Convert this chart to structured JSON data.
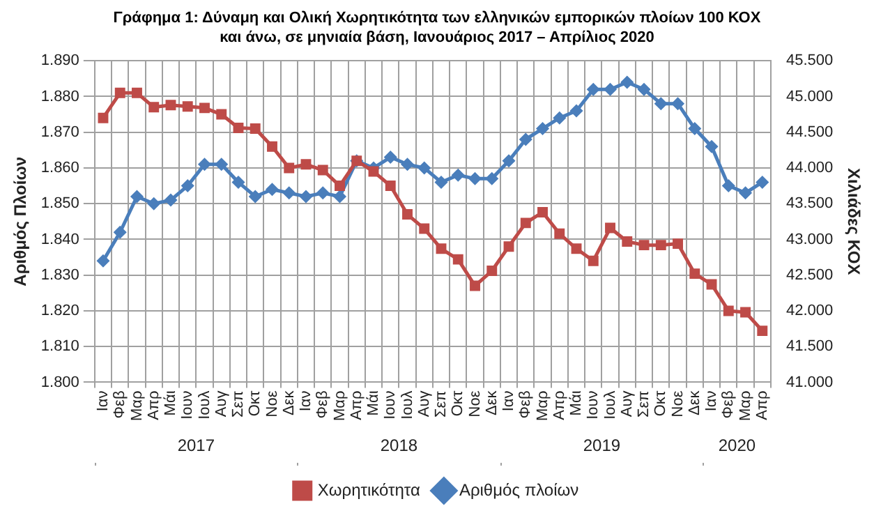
{
  "chart_data": {
    "type": "line",
    "title": "Γράφημα 1: Δύναμη και Ολική Χωρητικότητα των ελληνικών εμπορικών πλοίων 100 ΚΟΧ και άνω, σε μηνιαία βάση, Ιανουάριος 2017 – Απρίλιος 2020",
    "ylabel": "Αριθμός Πλοίων",
    "y2label": "Χιλιάδες ΚΟΧ",
    "categories": [
      "Ιαν",
      "Φεβ",
      "Μαρ",
      "Απρ",
      "Μάι",
      "Ιουν",
      "Ιουλ",
      "Αυγ",
      "Σεπ",
      "Οκτ",
      "Νοε",
      "Δεκ",
      "Ιαν",
      "Φεβ",
      "Μαρ",
      "Απρ",
      "Μάι",
      "Ιουν",
      "Ιουλ",
      "Αυγ",
      "Σεπ",
      "Οκτ",
      "Νοε",
      "Δεκ",
      "Ιαν",
      "Φεβ",
      "Μαρ",
      "Απρ",
      "Μάι",
      "Ιουν",
      "Ιουλ",
      "Αυγ",
      "Σεπ",
      "Οκτ",
      "Νοε",
      "Δεκ",
      "Ιαν",
      "Φεβ",
      "Μαρ",
      "Απρ"
    ],
    "annotations": [
      "2017",
      "2018",
      "2019",
      "2020"
    ],
    "series": [
      {
        "name": "Αριθμός πλοίων",
        "color": "#4a7ebb",
        "marker": "diamond",
        "values": [
          1834,
          1842,
          1852,
          1850,
          1851,
          1855,
          1861,
          1861,
          1856,
          1852,
          1854,
          1853,
          1852,
          1853,
          1852,
          1862,
          1860,
          1863,
          1861,
          1860,
          1856,
          1858,
          1857,
          1857,
          1862,
          1868,
          1871,
          1874,
          1876,
          1882,
          1882,
          1884,
          1882,
          1878,
          1878,
          1871,
          1866,
          1855,
          1853,
          1856
        ]
      },
      {
        "name": "Χωρητικότητα",
        "color": "#be4b48",
        "marker": "square",
        "axis": "y2",
        "values": [
          44700,
          45050,
          45050,
          44850,
          44880,
          44860,
          44840,
          44750,
          44560,
          44550,
          44300,
          44000,
          44050,
          43970,
          43750,
          44100,
          43950,
          43750,
          43350,
          43150,
          42870,
          42720,
          42350,
          42560,
          42900,
          43230,
          43380,
          43080,
          42870,
          42700,
          43160,
          42970,
          42920,
          42920,
          42940,
          42520,
          42370,
          42000,
          41980,
          41720
        ]
      }
    ],
    "ylim": [
      1800,
      1890
    ],
    "yticks": [
      {
        "value": 1800,
        "label": "1.800"
      },
      {
        "value": 1810,
        "label": "1.810"
      },
      {
        "value": 1820,
        "label": "1.820"
      },
      {
        "value": 1830,
        "label": "1.830"
      },
      {
        "value": 1840,
        "label": "1.840"
      },
      {
        "value": 1850,
        "label": "1.850"
      },
      {
        "value": 1860,
        "label": "1.860"
      },
      {
        "value": 1870,
        "label": "1.870"
      },
      {
        "value": 1880,
        "label": "1.880"
      },
      {
        "value": 1890,
        "label": "1.890"
      }
    ],
    "y2lim": [
      41000,
      45500
    ],
    "y2ticks": [
      {
        "value": 41000,
        "label": "41.000"
      },
      {
        "value": 41500,
        "label": "41.500"
      },
      {
        "value": 42000,
        "label": "42.000"
      },
      {
        "value": 42500,
        "label": "42.500"
      },
      {
        "value": 43000,
        "label": "43.000"
      },
      {
        "value": 43500,
        "label": "43.500"
      },
      {
        "value": 44000,
        "label": "44.000"
      },
      {
        "value": 44500,
        "label": "44.500"
      },
      {
        "value": 45000,
        "label": "45.000"
      },
      {
        "value": 45500,
        "label": "45.500"
      }
    ],
    "grid": true,
    "legend": "bottom",
    "line_style": "solid"
  }
}
